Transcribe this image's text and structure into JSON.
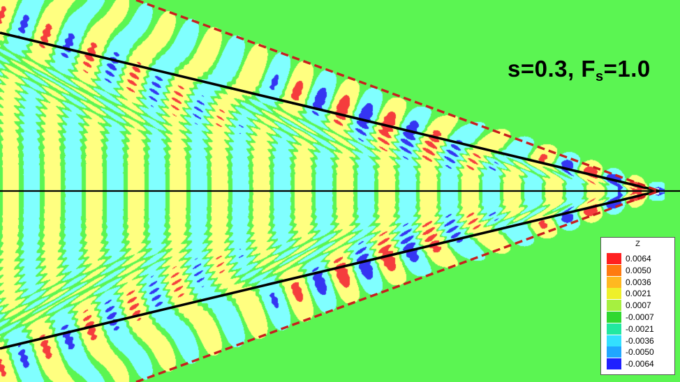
{
  "chart_data": {
    "type": "heatmap",
    "title": "",
    "xlabel": "",
    "ylabel": "",
    "grid": false,
    "legend_placement": "bottom-right",
    "annotation": {
      "prefix": "s=0.3, F",
      "subscript": "s",
      "suffix": "=1.0"
    },
    "colorbar": {
      "title": "Z",
      "levels": [
        "0.0064",
        "0.0050",
        "0.0036",
        "0.0021",
        "0.0007",
        "-0.0007",
        "-0.0021",
        "-0.0036",
        "-0.0050",
        "-0.0064"
      ],
      "colors": [
        "#ff2020",
        "#ff7a10",
        "#ffb820",
        "#eef02a",
        "#a6f040",
        "#30d830",
        "#22e8a0",
        "#33e0ff",
        "#20a6ff",
        "#1f20ff"
      ],
      "range": [
        -0.0064,
        0.0064
      ]
    },
    "field_colors": {
      "background": "#5bf552",
      "yellow": "#ffff80",
      "cyan": "#80ffff",
      "red": "#f53d3d",
      "blue": "#3535f2",
      "white": "#ffffff"
    },
    "overlay_lines": [
      {
        "style": "solid",
        "color": "#000000"
      },
      {
        "style": "dashed",
        "color": "#c81e1e"
      }
    ]
  }
}
